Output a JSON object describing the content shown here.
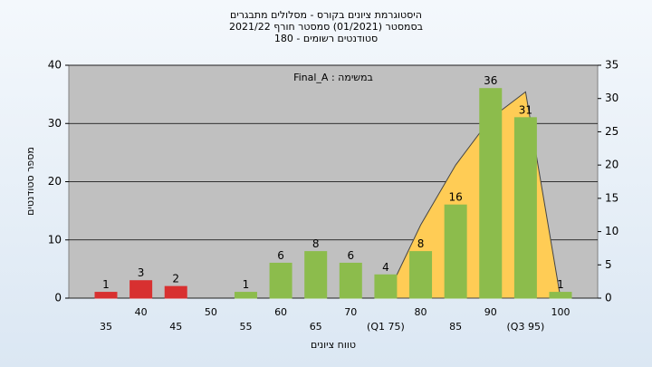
{
  "chart_data": {
    "type": "bar",
    "title": [
      "היסטוגרמת ציונים בקורס - מסלולים מתבגרים",
      "בסמסטר  (01/2021)  סמסטר חורף 2021/22",
      "סטודנטים רשומים - 180"
    ],
    "annotation": "Final_A : במשימה",
    "x_label": "טווח ציונים",
    "y_label": "מספר סטודנטים",
    "categories": [
      "35",
      "40",
      "45",
      "50",
      "55",
      "60",
      "65",
      "70",
      "(Q1 75)",
      "80",
      "85",
      "90",
      "(Q3 95)",
      "100"
    ],
    "values": [
      1,
      3,
      2,
      0,
      1,
      6,
      8,
      6,
      4,
      8,
      16,
      36,
      31,
      1
    ],
    "value_labels": [
      "1",
      "3",
      "2",
      null,
      "1",
      "6",
      "8",
      "6",
      "4",
      "8",
      "16",
      "36",
      "31",
      "1"
    ],
    "colors": [
      "#d83030",
      "#d83030",
      "#d83030",
      "#8cbc4c",
      "#8cbc4c",
      "#8cbc4c",
      "#8cbc4c",
      "#8cbc4c",
      "#8cbc4c",
      "#8cbc4c",
      "#8cbc4c",
      "#8cbc4c",
      "#8cbc4c",
      "#8cbc4c"
    ],
    "area": {
      "axis": "y2",
      "color": "#ffcc55",
      "values": [
        null,
        null,
        null,
        null,
        null,
        null,
        null,
        null,
        0,
        11,
        20,
        27,
        31,
        0
      ]
    },
    "ylim": [
      0,
      40
    ],
    "yticks": [
      0,
      10,
      20,
      30,
      40
    ],
    "y2lim": [
      0,
      35
    ],
    "y2ticks": [
      0,
      5,
      10,
      15,
      20,
      25,
      30,
      35
    ],
    "grid": true
  }
}
